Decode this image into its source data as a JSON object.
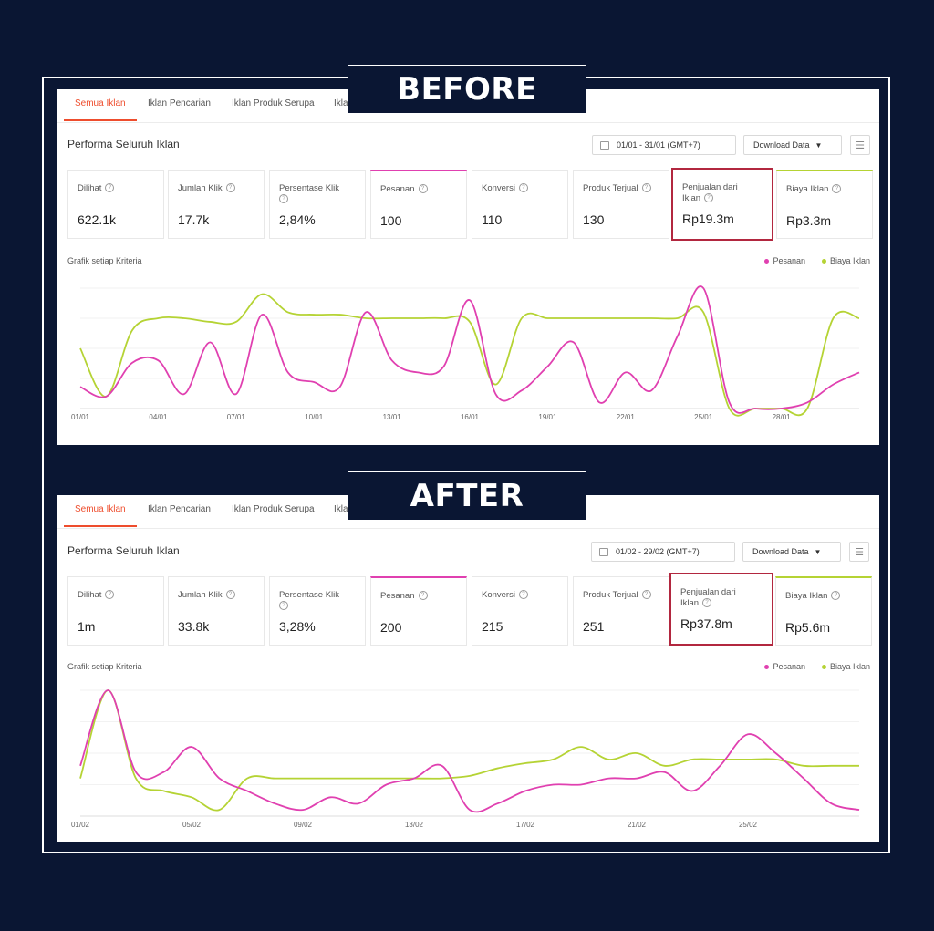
{
  "banners": {
    "before": "BEFORE",
    "after": "AFTER"
  },
  "colors": {
    "background": "#0a1633",
    "accent": "#ee4d2d",
    "pesanan": "#e040b0",
    "biaya": "#b5d334",
    "highlight": "#b2273f"
  },
  "before": {
    "tabs": [
      "Semua Iklan",
      "Iklan Pencarian",
      "Iklan Produk Serupa",
      "Ikla"
    ],
    "title": "Performa Seluruh Iklan",
    "date_range": "01/01 - 31/01 (GMT+7)",
    "download_label": "Download Data",
    "cards": [
      {
        "label": "Dilihat",
        "value": "622.1k"
      },
      {
        "label": "Jumlah Klik",
        "value": "17.7k"
      },
      {
        "label": "Persentase Klik",
        "value": "2,84%"
      },
      {
        "label": "Pesanan",
        "value": "100"
      },
      {
        "label": "Konversi",
        "value": "110"
      },
      {
        "label": "Produk Terjual",
        "value": "130"
      },
      {
        "label": "Penjualan dari Iklan",
        "value": "Rp19.3m"
      },
      {
        "label": "Biaya Iklan",
        "value": "Rp3.3m"
      }
    ],
    "graph_label": "Grafik setiap Kriteria",
    "legend": [
      "Pesanan",
      "Biaya Iklan"
    ]
  },
  "after": {
    "tabs": [
      "Semua Iklan",
      "Iklan Pencarian",
      "Iklan Produk Serupa",
      "Ikla"
    ],
    "title": "Performa Seluruh Iklan",
    "date_range": "01/02 - 29/02 (GMT+7)",
    "download_label": "Download Data",
    "cards": [
      {
        "label": "Dilihat",
        "value": "1m"
      },
      {
        "label": "Jumlah Klik",
        "value": "33.8k"
      },
      {
        "label": "Persentase Klik",
        "value": "3,28%"
      },
      {
        "label": "Pesanan",
        "value": "200"
      },
      {
        "label": "Konversi",
        "value": "215"
      },
      {
        "label": "Produk Terjual",
        "value": "251"
      },
      {
        "label": "Penjualan dari Iklan",
        "value": "Rp37.8m"
      },
      {
        "label": "Biaya Iklan",
        "value": "Rp5.6m"
      }
    ],
    "graph_label": "Grafik setiap Kriteria",
    "legend": [
      "Pesanan",
      "Biaya Iklan"
    ]
  },
  "chart_data": [
    {
      "type": "line",
      "x": [
        "01/01",
        "02/01",
        "03/01",
        "04/01",
        "05/01",
        "06/01",
        "07/01",
        "08/01",
        "09/01",
        "10/01",
        "11/01",
        "12/01",
        "13/01",
        "14/01",
        "15/01",
        "16/01",
        "17/01",
        "18/01",
        "19/01",
        "20/01",
        "21/01",
        "22/01",
        "23/01",
        "24/01",
        "25/01",
        "26/01",
        "27/01",
        "28/01",
        "29/01",
        "30/01",
        "31/01"
      ],
      "tick_labels": [
        "01/01",
        "04/01",
        "07/01",
        "10/01",
        "13/01",
        "16/01",
        "19/01",
        "22/01",
        "25/01",
        "28/01"
      ],
      "series": [
        {
          "name": "Pesanan",
          "values": [
            18,
            10,
            38,
            40,
            12,
            55,
            12,
            78,
            30,
            22,
            18,
            80,
            40,
            30,
            35,
            90,
            12,
            15,
            35,
            55,
            5,
            30,
            15,
            60,
            100,
            5,
            0,
            0,
            5,
            20,
            30
          ]
        },
        {
          "name": "Biaya Iklan",
          "values": [
            50,
            10,
            65,
            75,
            75,
            72,
            72,
            95,
            80,
            78,
            78,
            75,
            75,
            75,
            75,
            72,
            20,
            75,
            75,
            75,
            75,
            75,
            75,
            75,
            80,
            0,
            0,
            0,
            0,
            75,
            75
          ]
        }
      ],
      "ylim": [
        0,
        100
      ],
      "legend": "top-right"
    },
    {
      "type": "line",
      "x": [
        "01/02",
        "02/02",
        "03/02",
        "04/02",
        "05/02",
        "06/02",
        "07/02",
        "08/02",
        "09/02",
        "10/02",
        "11/02",
        "12/02",
        "13/02",
        "14/02",
        "15/02",
        "16/02",
        "17/02",
        "18/02",
        "19/02",
        "20/02",
        "21/02",
        "22/02",
        "23/02",
        "24/02",
        "25/02",
        "26/02",
        "27/02",
        "28/02",
        "29/02"
      ],
      "tick_labels": [
        "01/02",
        "05/02",
        "09/02",
        "13/02",
        "17/02",
        "21/02",
        "25/02"
      ],
      "series": [
        {
          "name": "Pesanan",
          "values": [
            40,
            100,
            35,
            35,
            55,
            30,
            20,
            10,
            5,
            15,
            10,
            25,
            30,
            40,
            5,
            10,
            20,
            25,
            25,
            30,
            30,
            35,
            20,
            40,
            65,
            50,
            30,
            10,
            5
          ]
        },
        {
          "name": "Biaya Iklan",
          "values": [
            30,
            100,
            30,
            20,
            15,
            5,
            30,
            30,
            30,
            30,
            30,
            30,
            30,
            30,
            32,
            38,
            42,
            45,
            55,
            45,
            50,
            40,
            45,
            45,
            45,
            45,
            40,
            40,
            40
          ]
        }
      ],
      "ylim": [
        0,
        100
      ],
      "legend": "top-right"
    }
  ]
}
